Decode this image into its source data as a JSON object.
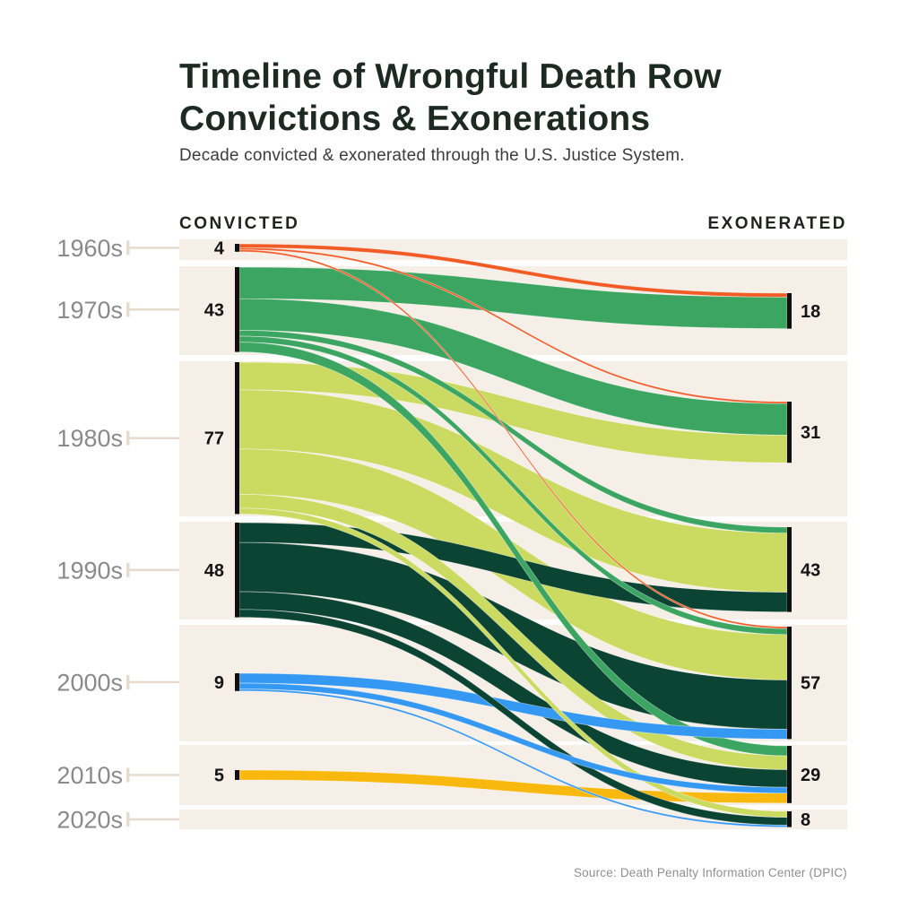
{
  "header": {
    "title_line1": "Timeline of Wrongful Death Row",
    "title_line2": "Convictions & Exonerations",
    "subtitle": "Decade convicted & exonerated through the U.S. Justice System."
  },
  "columns": {
    "left_label": "CONVICTED",
    "right_label": "EXONERATED"
  },
  "footer": {
    "source": "Source: Death Penalty Information Center (DPIC)"
  },
  "chart_data": {
    "type": "sankey",
    "title": "Timeline of Wrongful Death Row Convictions & Exonerations",
    "left_axis_label": "CONVICTED",
    "right_axis_label": "EXONERATED",
    "units": "people",
    "decades": [
      "1960s",
      "1970s",
      "1980s",
      "1990s",
      "2000s",
      "2010s",
      "2020s"
    ],
    "convicted_totals": {
      "1960s": 4,
      "1970s": 43,
      "1980s": 77,
      "1990s": 48,
      "2000s": 9,
      "2010s": 5
    },
    "exonerated_totals": {
      "1970s": 18,
      "1980s": 31,
      "1990s": 43,
      "2000s": 57,
      "2010s": 29,
      "2020s": 8
    },
    "decade_colors": {
      "1960s": "#F15B25",
      "1970s": "#3BA561",
      "1980s": "#CBDB62",
      "1990s": "#0C4433",
      "2000s": "#3598F2",
      "2010s": "#F9B80E"
    },
    "flows": [
      {
        "from": "1960s",
        "to": "1970s",
        "value": 2
      },
      {
        "from": "1960s",
        "to": "1980s",
        "value": 1
      },
      {
        "from": "1960s",
        "to": "2000s",
        "value": 1
      },
      {
        "from": "1970s",
        "to": "1970s",
        "value": 16
      },
      {
        "from": "1970s",
        "to": "1980s",
        "value": 16
      },
      {
        "from": "1970s",
        "to": "1990s",
        "value": 3
      },
      {
        "from": "1970s",
        "to": "2000s",
        "value": 3
      },
      {
        "from": "1970s",
        "to": "2010s",
        "value": 5
      },
      {
        "from": "1980s",
        "to": "1980s",
        "value": 14
      },
      {
        "from": "1980s",
        "to": "1990s",
        "value": 30
      },
      {
        "from": "1980s",
        "to": "2000s",
        "value": 23
      },
      {
        "from": "1980s",
        "to": "2010s",
        "value": 7
      },
      {
        "from": "1980s",
        "to": "2020s",
        "value": 3
      },
      {
        "from": "1990s",
        "to": "1990s",
        "value": 10
      },
      {
        "from": "1990s",
        "to": "2000s",
        "value": 25
      },
      {
        "from": "1990s",
        "to": "2010s",
        "value": 9
      },
      {
        "from": "1990s",
        "to": "2020s",
        "value": 4
      },
      {
        "from": "2000s",
        "to": "2000s",
        "value": 5
      },
      {
        "from": "2000s",
        "to": "2010s",
        "value": 3
      },
      {
        "from": "2000s",
        "to": "2020s",
        "value": 1
      },
      {
        "from": "2010s",
        "to": "2010s",
        "value": 5
      }
    ],
    "style_colors": {
      "row_band": "#F6EFE8",
      "node_bar": "#101010",
      "connector": "#E6DBCE",
      "title_text": "#1D2A23",
      "decade_label_text": "#8A8A8A",
      "source_text": "#8F8F8F"
    }
  }
}
